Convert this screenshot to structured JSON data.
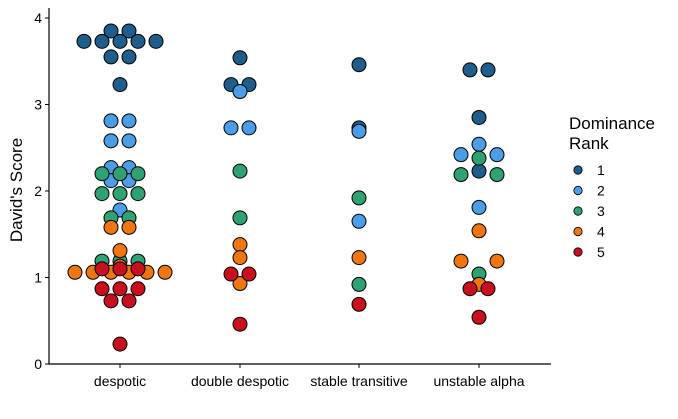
{
  "chart_data": {
    "type": "scatter",
    "style": "dotplot",
    "xlabel": "",
    "ylabel": "David's Score",
    "categories": [
      "despotic",
      "double despotic",
      "stable transitive",
      "unstable alpha"
    ],
    "ylim": [
      0,
      4
    ],
    "yticks": [
      0,
      1,
      2,
      3,
      4
    ],
    "grid": false,
    "legend": {
      "title": "Dominance Rank",
      "title_lines": [
        "Dominance",
        "Rank"
      ],
      "position": "right",
      "entries": [
        "1",
        "2",
        "3",
        "4",
        "5"
      ]
    },
    "colors": {
      "1": "#1f5e8c",
      "2": "#4a9ee8",
      "3": "#2ea272",
      "4": "#f0760d",
      "5": "#c8101e"
    },
    "points": [
      {
        "category": "despotic",
        "rank": "1",
        "y": 3.85,
        "offset": -1
      },
      {
        "category": "despotic",
        "rank": "1",
        "y": 3.85,
        "offset": 1
      },
      {
        "category": "despotic",
        "rank": "1",
        "y": 3.73,
        "offset": -4
      },
      {
        "category": "despotic",
        "rank": "1",
        "y": 3.73,
        "offset": -2
      },
      {
        "category": "despotic",
        "rank": "1",
        "y": 3.73,
        "offset": 0
      },
      {
        "category": "despotic",
        "rank": "1",
        "y": 3.73,
        "offset": 2
      },
      {
        "category": "despotic",
        "rank": "1",
        "y": 3.73,
        "offset": 4
      },
      {
        "category": "despotic",
        "rank": "1",
        "y": 3.55,
        "offset": -1
      },
      {
        "category": "despotic",
        "rank": "1",
        "y": 3.55,
        "offset": 1
      },
      {
        "category": "despotic",
        "rank": "1",
        "y": 3.23,
        "offset": 0
      },
      {
        "category": "despotic",
        "rank": "2",
        "y": 2.81,
        "offset": -1
      },
      {
        "category": "despotic",
        "rank": "2",
        "y": 2.81,
        "offset": 1
      },
      {
        "category": "despotic",
        "rank": "2",
        "y": 2.58,
        "offset": -1
      },
      {
        "category": "despotic",
        "rank": "2",
        "y": 2.58,
        "offset": 1
      },
      {
        "category": "despotic",
        "rank": "2",
        "y": 2.27,
        "offset": -1
      },
      {
        "category": "despotic",
        "rank": "2",
        "y": 2.27,
        "offset": 1
      },
      {
        "category": "despotic",
        "rank": "2",
        "y": 2.12,
        "offset": -1
      },
      {
        "category": "despotic",
        "rank": "2",
        "y": 2.12,
        "offset": 1
      },
      {
        "category": "despotic",
        "rank": "2",
        "y": 1.78,
        "offset": 0
      },
      {
        "category": "despotic",
        "rank": "3",
        "y": 2.2,
        "offset": -2
      },
      {
        "category": "despotic",
        "rank": "3",
        "y": 2.2,
        "offset": 0
      },
      {
        "category": "despotic",
        "rank": "3",
        "y": 2.2,
        "offset": 2
      },
      {
        "category": "despotic",
        "rank": "3",
        "y": 1.97,
        "offset": -2
      },
      {
        "category": "despotic",
        "rank": "3",
        "y": 1.97,
        "offset": 0
      },
      {
        "category": "despotic",
        "rank": "3",
        "y": 1.97,
        "offset": 2
      },
      {
        "category": "despotic",
        "rank": "3",
        "y": 1.69,
        "offset": -1
      },
      {
        "category": "despotic",
        "rank": "3",
        "y": 1.69,
        "offset": 1
      },
      {
        "category": "despotic",
        "rank": "3",
        "y": 1.19,
        "offset": -2
      },
      {
        "category": "despotic",
        "rank": "3",
        "y": 1.19,
        "offset": 0
      },
      {
        "category": "despotic",
        "rank": "3",
        "y": 1.19,
        "offset": 2
      },
      {
        "category": "despotic",
        "rank": "4",
        "y": 1.58,
        "offset": -1
      },
      {
        "category": "despotic",
        "rank": "4",
        "y": 1.58,
        "offset": 1
      },
      {
        "category": "despotic",
        "rank": "4",
        "y": 1.31,
        "offset": 0
      },
      {
        "category": "despotic",
        "rank": "4",
        "y": 1.13,
        "offset": 0
      },
      {
        "category": "despotic",
        "rank": "4",
        "y": 1.06,
        "offset": -5
      },
      {
        "category": "despotic",
        "rank": "4",
        "y": 1.06,
        "offset": -3
      },
      {
        "category": "despotic",
        "rank": "4",
        "y": 1.06,
        "offset": -1
      },
      {
        "category": "despotic",
        "rank": "4",
        "y": 1.06,
        "offset": 1
      },
      {
        "category": "despotic",
        "rank": "4",
        "y": 1.06,
        "offset": 3
      },
      {
        "category": "despotic",
        "rank": "4",
        "y": 1.06,
        "offset": 5
      },
      {
        "category": "despotic",
        "rank": "5",
        "y": 1.1,
        "offset": -2
      },
      {
        "category": "despotic",
        "rank": "5",
        "y": 1.1,
        "offset": 0
      },
      {
        "category": "despotic",
        "rank": "5",
        "y": 1.1,
        "offset": 2
      },
      {
        "category": "despotic",
        "rank": "5",
        "y": 0.87,
        "offset": -2
      },
      {
        "category": "despotic",
        "rank": "5",
        "y": 0.87,
        "offset": 0
      },
      {
        "category": "despotic",
        "rank": "5",
        "y": 0.87,
        "offset": 2
      },
      {
        "category": "despotic",
        "rank": "5",
        "y": 0.73,
        "offset": -1
      },
      {
        "category": "despotic",
        "rank": "5",
        "y": 0.73,
        "offset": 1
      },
      {
        "category": "despotic",
        "rank": "5",
        "y": 0.23,
        "offset": 0
      },
      {
        "category": "double despotic",
        "rank": "1",
        "y": 3.54,
        "offset": 0
      },
      {
        "category": "double despotic",
        "rank": "1",
        "y": 3.23,
        "offset": -1
      },
      {
        "category": "double despotic",
        "rank": "1",
        "y": 3.23,
        "offset": 1
      },
      {
        "category": "double despotic",
        "rank": "2",
        "y": 3.15,
        "offset": 0
      },
      {
        "category": "double despotic",
        "rank": "2",
        "y": 2.73,
        "offset": -1
      },
      {
        "category": "double despotic",
        "rank": "2",
        "y": 2.73,
        "offset": 1
      },
      {
        "category": "double despotic",
        "rank": "3",
        "y": 2.23,
        "offset": 0
      },
      {
        "category": "double despotic",
        "rank": "3",
        "y": 1.69,
        "offset": 0
      },
      {
        "category": "double despotic",
        "rank": "4",
        "y": 1.38,
        "offset": 0
      },
      {
        "category": "double despotic",
        "rank": "4",
        "y": 1.23,
        "offset": 0
      },
      {
        "category": "double despotic",
        "rank": "4",
        "y": 0.93,
        "offset": 0
      },
      {
        "category": "double despotic",
        "rank": "5",
        "y": 1.04,
        "offset": -1
      },
      {
        "category": "double despotic",
        "rank": "5",
        "y": 1.04,
        "offset": 1
      },
      {
        "category": "double despotic",
        "rank": "5",
        "y": 0.46,
        "offset": 0
      },
      {
        "category": "stable transitive",
        "rank": "1",
        "y": 3.46,
        "offset": 0
      },
      {
        "category": "stable transitive",
        "rank": "1",
        "y": 2.73,
        "offset": 0
      },
      {
        "category": "stable transitive",
        "rank": "2",
        "y": 2.69,
        "offset": 0
      },
      {
        "category": "stable transitive",
        "rank": "2",
        "y": 1.65,
        "offset": 0
      },
      {
        "category": "stable transitive",
        "rank": "3",
        "y": 1.92,
        "offset": 0
      },
      {
        "category": "stable transitive",
        "rank": "3",
        "y": 0.92,
        "offset": 0
      },
      {
        "category": "stable transitive",
        "rank": "4",
        "y": 1.23,
        "offset": 0
      },
      {
        "category": "stable transitive",
        "rank": "5",
        "y": 0.69,
        "offset": 0
      },
      {
        "category": "unstable alpha",
        "rank": "1",
        "y": 3.4,
        "offset": -1
      },
      {
        "category": "unstable alpha",
        "rank": "1",
        "y": 3.4,
        "offset": 1
      },
      {
        "category": "unstable alpha",
        "rank": "1",
        "y": 2.85,
        "offset": 0
      },
      {
        "category": "unstable alpha",
        "rank": "1",
        "y": 2.23,
        "offset": 0
      },
      {
        "category": "unstable alpha",
        "rank": "2",
        "y": 2.54,
        "offset": 0
      },
      {
        "category": "unstable alpha",
        "rank": "2",
        "y": 2.42,
        "offset": -2
      },
      {
        "category": "unstable alpha",
        "rank": "2",
        "y": 2.42,
        "offset": 2
      },
      {
        "category": "unstable alpha",
        "rank": "2",
        "y": 1.81,
        "offset": 0
      },
      {
        "category": "unstable alpha",
        "rank": "3",
        "y": 2.38,
        "offset": 0
      },
      {
        "category": "unstable alpha",
        "rank": "3",
        "y": 2.19,
        "offset": -2
      },
      {
        "category": "unstable alpha",
        "rank": "3",
        "y": 2.19,
        "offset": 2
      },
      {
        "category": "unstable alpha",
        "rank": "3",
        "y": 1.04,
        "offset": 0
      },
      {
        "category": "unstable alpha",
        "rank": "4",
        "y": 1.54,
        "offset": 0
      },
      {
        "category": "unstable alpha",
        "rank": "4",
        "y": 1.19,
        "offset": -2
      },
      {
        "category": "unstable alpha",
        "rank": "4",
        "y": 1.19,
        "offset": 2
      },
      {
        "category": "unstable alpha",
        "rank": "4",
        "y": 0.92,
        "offset": 0
      },
      {
        "category": "unstable alpha",
        "rank": "5",
        "y": 0.87,
        "offset": -1
      },
      {
        "category": "unstable alpha",
        "rank": "5",
        "y": 0.87,
        "offset": 1
      },
      {
        "category": "unstable alpha",
        "rank": "5",
        "y": 0.54,
        "offset": 0
      }
    ]
  }
}
